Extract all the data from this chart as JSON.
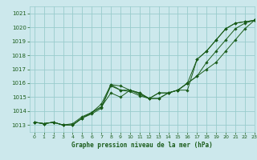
{
  "title": "Graphe pression niveau de la mer (hPa)",
  "bg_color": "#cce8ec",
  "grid_color": "#99cccc",
  "line_color": "#1a5c1a",
  "xlim": [
    -0.5,
    23
  ],
  "ylim": [
    1012.5,
    1021.5
  ],
  "yticks": [
    1013,
    1014,
    1015,
    1016,
    1017,
    1018,
    1019,
    1020,
    1021
  ],
  "xticks": [
    0,
    1,
    2,
    3,
    4,
    5,
    6,
    7,
    8,
    9,
    10,
    11,
    12,
    13,
    14,
    15,
    16,
    17,
    18,
    19,
    20,
    21,
    22,
    23
  ],
  "series": [
    [
      1013.2,
      1013.1,
      1013.2,
      1013.0,
      1013.0,
      1013.5,
      1013.8,
      1014.2,
      1015.9,
      1015.8,
      1015.5,
      1015.3,
      1014.9,
      1015.3,
      1015.3,
      1015.5,
      1015.5,
      1017.7,
      1018.3,
      1019.1,
      1019.9,
      1020.3,
      1020.4,
      1020.5
    ],
    [
      1013.2,
      1013.1,
      1013.2,
      1013.0,
      1013.0,
      1013.5,
      1013.9,
      1014.3,
      1015.3,
      1015.0,
      1015.5,
      1015.3,
      1014.9,
      1015.3,
      1015.3,
      1015.5,
      1016.0,
      1017.7,
      1018.3,
      1019.1,
      1019.9,
      1020.3,
      1020.4,
      1020.5
    ],
    [
      1013.2,
      1013.1,
      1013.2,
      1013.0,
      1013.1,
      1013.6,
      1013.9,
      1014.3,
      1015.8,
      1015.5,
      1015.5,
      1015.2,
      1014.9,
      1014.9,
      1015.3,
      1015.5,
      1016.0,
      1016.5,
      1017.5,
      1018.3,
      1019.1,
      1019.9,
      1020.3,
      1020.5
    ],
    [
      1013.2,
      1013.1,
      1013.2,
      1013.0,
      1013.0,
      1013.5,
      1013.9,
      1014.5,
      1015.9,
      1015.5,
      1015.4,
      1015.1,
      1014.9,
      1014.9,
      1015.3,
      1015.5,
      1016.0,
      1016.5,
      1017.0,
      1017.5,
      1018.3,
      1019.1,
      1019.9,
      1020.5
    ]
  ]
}
